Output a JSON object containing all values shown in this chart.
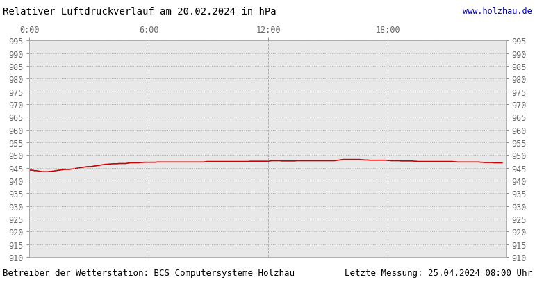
{
  "title": "Relativer Luftdruckverlauf am 20.02.2024 in hPa",
  "url_text": "www.holzhau.de",
  "bottom_left": "Betreiber der Wetterstation: BCS Computersysteme Holzhau",
  "bottom_right": "Letzte Messung: 25.04.2024 08:00 Uhr",
  "ylim": [
    910,
    995
  ],
  "ytick_step": 5,
  "xlim": [
    0,
    287
  ],
  "xtick_positions": [
    0,
    72,
    144,
    216
  ],
  "xtick_labels": [
    "0:00",
    "6:00",
    "12:00",
    "18:00"
  ],
  "line_color": "#cc0000",
  "line_width": 1.2,
  "grid_color": "#aaaaaa",
  "plot_bg_color": "#e8e8e8",
  "fig_bg_color": "#ffffff",
  "pressure_data": [
    944.1,
    944.1,
    944.1,
    943.9,
    943.9,
    943.8,
    943.7,
    943.6,
    943.5,
    943.5,
    943.5,
    943.5,
    943.6,
    943.6,
    943.7,
    943.8,
    943.9,
    944.0,
    944.1,
    944.2,
    944.3,
    944.4,
    944.4,
    944.4,
    944.4,
    944.5,
    944.6,
    944.7,
    944.8,
    944.9,
    945.0,
    945.1,
    945.2,
    945.3,
    945.4,
    945.5,
    945.5,
    945.5,
    945.6,
    945.7,
    945.8,
    945.9,
    946.0,
    946.1,
    946.2,
    946.3,
    946.4,
    946.4,
    946.5,
    946.5,
    946.6,
    946.6,
    946.6,
    946.6,
    946.7,
    946.7,
    946.7,
    946.7,
    946.7,
    946.8,
    946.9,
    947.0,
    947.0,
    947.0,
    947.0,
    947.0,
    947.0,
    947.1,
    947.1,
    947.2,
    947.2,
    947.2,
    947.2,
    947.2,
    947.2,
    947.2,
    947.2,
    947.3,
    947.3,
    947.3,
    947.3,
    947.3,
    947.3,
    947.3,
    947.3,
    947.3,
    947.3,
    947.3,
    947.3,
    947.3,
    947.3,
    947.3,
    947.3,
    947.3,
    947.3,
    947.3,
    947.3,
    947.3,
    947.3,
    947.3,
    947.3,
    947.3,
    947.3,
    947.3,
    947.3,
    947.3,
    947.4,
    947.5,
    947.5,
    947.5,
    947.5,
    947.5,
    947.5,
    947.5,
    947.5,
    947.5,
    947.5,
    947.5,
    947.5,
    947.5,
    947.5,
    947.5,
    947.5,
    947.5,
    947.5,
    947.5,
    947.5,
    947.5,
    947.5,
    947.5,
    947.5,
    947.5,
    947.5,
    947.6,
    947.6,
    947.6,
    947.6,
    947.6,
    947.6,
    947.6,
    947.6,
    947.6,
    947.6,
    947.6,
    947.6,
    947.7,
    947.8,
    947.8,
    947.8,
    947.8,
    947.8,
    947.8,
    947.7,
    947.7,
    947.7,
    947.7,
    947.7,
    947.7,
    947.7,
    947.7,
    947.7,
    947.8,
    947.8,
    947.8,
    947.8,
    947.8,
    947.8,
    947.8,
    947.8,
    947.8,
    947.8,
    947.8,
    947.8,
    947.8,
    947.8,
    947.8,
    947.8,
    947.8,
    947.8,
    947.8,
    947.8,
    947.8,
    947.8,
    947.8,
    947.8,
    947.9,
    948.0,
    948.1,
    948.2,
    948.3,
    948.3,
    948.3,
    948.3,
    948.3,
    948.3,
    948.3,
    948.3,
    948.3,
    948.3,
    948.3,
    948.2,
    948.2,
    948.1,
    948.1,
    948.1,
    948.0,
    948.0,
    948.0,
    948.0,
    948.0,
    948.0,
    948.0,
    948.0,
    948.0,
    948.0,
    948.0,
    947.9,
    947.9,
    947.8,
    947.8,
    947.8,
    947.8,
    947.8,
    947.8,
    947.7,
    947.7,
    947.7,
    947.7,
    947.7,
    947.7,
    947.7,
    947.7,
    947.6,
    947.6,
    947.5,
    947.5,
    947.5,
    947.5,
    947.5,
    947.5,
    947.5,
    947.5,
    947.5,
    947.5,
    947.5,
    947.5,
    947.5,
    947.5,
    947.5,
    947.5,
    947.5,
    947.5,
    947.5,
    947.5,
    947.5,
    947.5,
    947.4,
    947.4,
    947.3,
    947.3,
    947.3,
    947.3,
    947.3,
    947.3,
    947.3,
    947.3,
    947.3,
    947.3,
    947.3,
    947.3,
    947.3,
    947.3,
    947.2,
    947.2,
    947.1,
    947.1,
    947.1,
    947.1,
    947.1,
    947.1,
    947.0,
    947.0,
    947.0,
    947.0,
    947.0,
    947.0
  ],
  "title_fontsize": 10,
  "tick_fontsize": 8.5,
  "bottom_fontsize": 9
}
